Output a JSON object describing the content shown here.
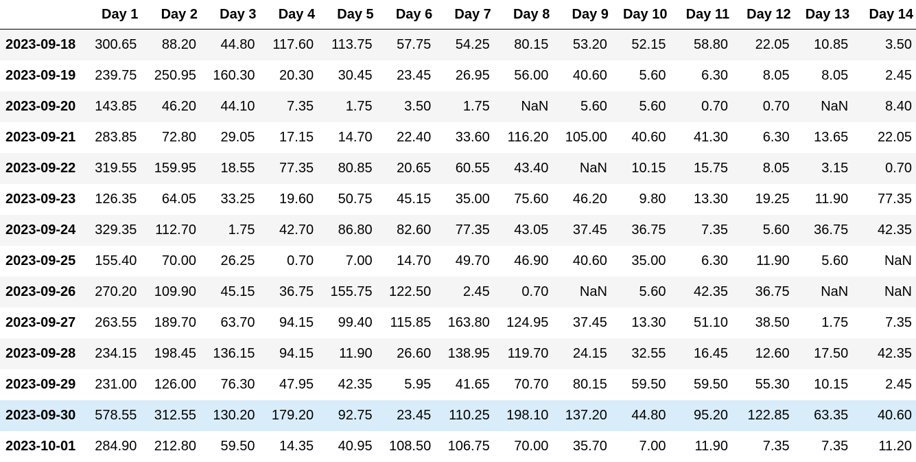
{
  "table": {
    "index_header": "",
    "columns": [
      "Day 1",
      "Day 2",
      "Day 3",
      "Day 4",
      "Day 5",
      "Day 6",
      "Day 7",
      "Day 8",
      "Day 9",
      "Day 10",
      "Day 11",
      "Day 12",
      "Day 13",
      "Day 14"
    ],
    "highlight_color": "#d9ecfa",
    "stripe_color": "#f5f5f5",
    "highlighted_row": "2023-09-30",
    "rows": [
      {
        "index": "2023-09-18",
        "values": [
          "300.65",
          "88.20",
          "44.80",
          "117.60",
          "113.75",
          "57.75",
          "54.25",
          "80.15",
          "53.20",
          "52.15",
          "58.80",
          "22.05",
          "10.85",
          "3.50"
        ]
      },
      {
        "index": "2023-09-19",
        "values": [
          "239.75",
          "250.95",
          "160.30",
          "20.30",
          "30.45",
          "23.45",
          "26.95",
          "56.00",
          "40.60",
          "5.60",
          "6.30",
          "8.05",
          "8.05",
          "2.45"
        ]
      },
      {
        "index": "2023-09-20",
        "values": [
          "143.85",
          "46.20",
          "44.10",
          "7.35",
          "1.75",
          "3.50",
          "1.75",
          "NaN",
          "5.60",
          "5.60",
          "0.70",
          "0.70",
          "NaN",
          "8.40"
        ]
      },
      {
        "index": "2023-09-21",
        "values": [
          "283.85",
          "72.80",
          "29.05",
          "17.15",
          "14.70",
          "22.40",
          "33.60",
          "116.20",
          "105.00",
          "40.60",
          "41.30",
          "6.30",
          "13.65",
          "22.05"
        ]
      },
      {
        "index": "2023-09-22",
        "values": [
          "319.55",
          "159.95",
          "18.55",
          "77.35",
          "80.85",
          "20.65",
          "60.55",
          "43.40",
          "NaN",
          "10.15",
          "15.75",
          "8.05",
          "3.15",
          "0.70"
        ]
      },
      {
        "index": "2023-09-23",
        "values": [
          "126.35",
          "64.05",
          "33.25",
          "19.60",
          "50.75",
          "45.15",
          "35.00",
          "75.60",
          "46.20",
          "9.80",
          "13.30",
          "19.25",
          "11.90",
          "77.35"
        ]
      },
      {
        "index": "2023-09-24",
        "values": [
          "329.35",
          "112.70",
          "1.75",
          "42.70",
          "86.80",
          "82.60",
          "77.35",
          "43.05",
          "37.45",
          "36.75",
          "7.35",
          "5.60",
          "36.75",
          "42.35"
        ]
      },
      {
        "index": "2023-09-25",
        "values": [
          "155.40",
          "70.00",
          "26.25",
          "0.70",
          "7.00",
          "14.70",
          "49.70",
          "46.90",
          "40.60",
          "35.00",
          "6.30",
          "11.90",
          "5.60",
          "NaN"
        ]
      },
      {
        "index": "2023-09-26",
        "values": [
          "270.20",
          "109.90",
          "45.15",
          "36.75",
          "155.75",
          "122.50",
          "2.45",
          "0.70",
          "NaN",
          "5.60",
          "42.35",
          "36.75",
          "NaN",
          "NaN"
        ]
      },
      {
        "index": "2023-09-27",
        "values": [
          "263.55",
          "189.70",
          "63.70",
          "94.15",
          "99.40",
          "115.85",
          "163.80",
          "124.95",
          "37.45",
          "13.30",
          "51.10",
          "38.50",
          "1.75",
          "7.35"
        ]
      },
      {
        "index": "2023-09-28",
        "values": [
          "234.15",
          "198.45",
          "136.15",
          "94.15",
          "11.90",
          "26.60",
          "138.95",
          "119.70",
          "24.15",
          "32.55",
          "16.45",
          "12.60",
          "17.50",
          "42.35"
        ]
      },
      {
        "index": "2023-09-29",
        "values": [
          "231.00",
          "126.00",
          "76.30",
          "47.95",
          "42.35",
          "5.95",
          "41.65",
          "70.70",
          "80.15",
          "59.50",
          "59.50",
          "55.30",
          "10.15",
          "2.45"
        ]
      },
      {
        "index": "2023-09-30",
        "values": [
          "578.55",
          "312.55",
          "130.20",
          "179.20",
          "92.75",
          "23.45",
          "110.25",
          "198.10",
          "137.20",
          "44.80",
          "95.20",
          "122.85",
          "63.35",
          "40.60"
        ]
      },
      {
        "index": "2023-10-01",
        "values": [
          "284.90",
          "212.80",
          "59.50",
          "14.35",
          "40.95",
          "108.50",
          "106.75",
          "70.00",
          "35.70",
          "7.00",
          "11.90",
          "7.35",
          "7.35",
          "11.20"
        ]
      }
    ]
  }
}
